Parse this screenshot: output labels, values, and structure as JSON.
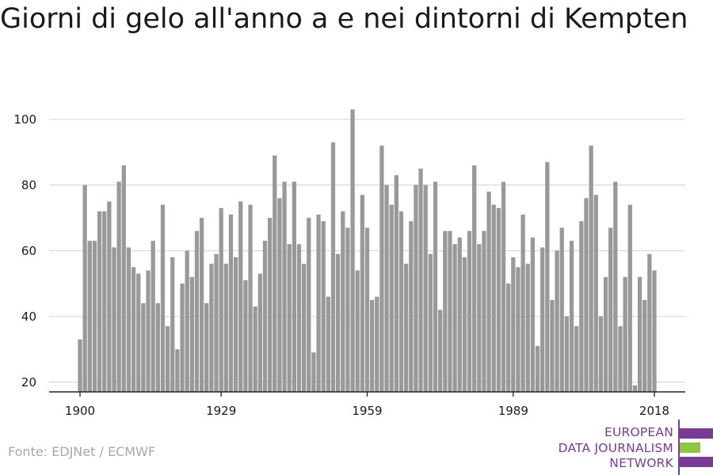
{
  "title": "Giorni di gelo all'anno a e nei dintorni di Kempten",
  "source": "Fonte: EDJNet / ECMWF",
  "logo": {
    "line1": "EUROPEAN",
    "line2": "DATA JOURNALISM",
    "line3": "NETWORK",
    "purple": "#7a3b96",
    "green": "#8dc63f"
  },
  "colors": {
    "bar": "#999999",
    "grid": "#dcdcdc",
    "axis": "#222222",
    "text": "#1a1a1a"
  },
  "chart_data": {
    "type": "bar",
    "title": "Giorni di gelo all'anno a e nei dintorni di Kempten",
    "xlabel": "",
    "ylabel": "",
    "x_ticks": [
      1900,
      1929,
      1959,
      1989,
      2018
    ],
    "y_ticks": [
      20,
      40,
      60,
      80,
      100
    ],
    "ylim": [
      17,
      105
    ],
    "xlim": [
      1900,
      2018
    ],
    "grid": true,
    "x": [
      1900,
      1901,
      1902,
      1903,
      1904,
      1905,
      1906,
      1907,
      1908,
      1909,
      1910,
      1911,
      1912,
      1913,
      1914,
      1915,
      1916,
      1917,
      1918,
      1919,
      1920,
      1921,
      1922,
      1923,
      1924,
      1925,
      1926,
      1927,
      1928,
      1929,
      1930,
      1931,
      1932,
      1933,
      1934,
      1935,
      1936,
      1937,
      1938,
      1939,
      1940,
      1941,
      1942,
      1943,
      1944,
      1945,
      1946,
      1947,
      1948,
      1949,
      1950,
      1951,
      1952,
      1953,
      1954,
      1955,
      1956,
      1957,
      1958,
      1959,
      1960,
      1961,
      1962,
      1963,
      1964,
      1965,
      1966,
      1967,
      1968,
      1969,
      1970,
      1971,
      1972,
      1973,
      1974,
      1975,
      1976,
      1977,
      1978,
      1979,
      1980,
      1981,
      1982,
      1983,
      1984,
      1985,
      1986,
      1987,
      1988,
      1989,
      1990,
      1991,
      1992,
      1993,
      1994,
      1995,
      1996,
      1997,
      1998,
      1999,
      2000,
      2001,
      2002,
      2003,
      2004,
      2005,
      2006,
      2007,
      2008,
      2009,
      2010,
      2011,
      2012,
      2013,
      2014,
      2015,
      2016,
      2017,
      2018
    ],
    "values": [
      33,
      80,
      63,
      63,
      72,
      72,
      75,
      61,
      81,
      86,
      61,
      55,
      53,
      44,
      54,
      63,
      44,
      74,
      37,
      58,
      30,
      50,
      60,
      52,
      66,
      70,
      44,
      56,
      59,
      73,
      56,
      71,
      58,
      75,
      51,
      74,
      43,
      53,
      63,
      70,
      89,
      76,
      81,
      62,
      81,
      62,
      56,
      70,
      29,
      71,
      69,
      46,
      93,
      59,
      72,
      67,
      103,
      54,
      77,
      67,
      45,
      46,
      92,
      80,
      74,
      83,
      72,
      56,
      69,
      80,
      85,
      80,
      59,
      81,
      42,
      66,
      66,
      62,
      64,
      58,
      66,
      86,
      62,
      66,
      78,
      74,
      73,
      81,
      50,
      58,
      55,
      71,
      56,
      64,
      31,
      61,
      87,
      45,
      60,
      67,
      40,
      63,
      37,
      69,
      76,
      92,
      77,
      40,
      52,
      67,
      81,
      37,
      52,
      74,
      19,
      52,
      45,
      59,
      54
    ]
  }
}
